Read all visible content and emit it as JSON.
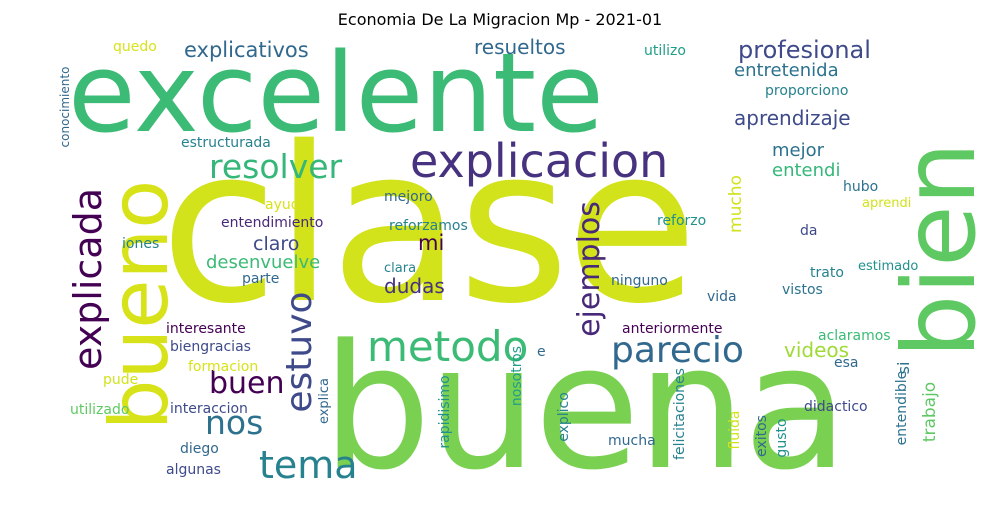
{
  "title": "Economia De La Migracion Mp - 2021-01",
  "words": {
    "clase": "clase",
    "buena": "buena",
    "excelente": "excelente",
    "bien": "bien",
    "bueno": "bueno",
    "explicacion": "explicacion",
    "explicada": "explicada",
    "estuvo": "estuvo",
    "ejemplos": "ejemplos",
    "metodo": "metodo",
    "parecio": "parecio",
    "resolver": "resolver",
    "tema": "tema",
    "nos": "nos",
    "buen": "buen",
    "profesional": "profesional",
    "explicativos": "explicativos",
    "resueltos": "resueltos",
    "entretenida": "entretenida",
    "aprendizaje": "aprendizaje",
    "mejor": "mejor",
    "entendi": "entendi",
    "claro": "claro",
    "desenvuelve": "desenvuelve",
    "mi": "mi",
    "dudas": "dudas",
    "videos": "videos",
    "mucho": "mucho",
    "quedo": "quedo",
    "utilizo": "utilizo",
    "proporciono": "proporciono",
    "conocimiento": "conocimiento",
    "estructurada": "estructurada",
    "ayudo": "ayudo",
    "mejoro": "mejoro",
    "entendimiento": "entendimiento",
    "reforzamos": "reforzamos",
    "reforzo": "reforzo",
    "hubo": "hubo",
    "aprendi": "aprendi",
    "iones": "iones",
    "da": "da",
    "clara": "clara",
    "parte": "parte",
    "ninguno": "ninguno",
    "trato": "trato",
    "estimado": "estimado",
    "vistos": "vistos",
    "vida": "vida",
    "interesante": "interesante",
    "biengracias": "biengracias",
    "anteriormente": "anteriormente",
    "aclaramos": "aclaramos",
    "formacion": "formacion",
    "pude": "pude",
    "esa": "esa",
    "e": "e",
    "si": "si",
    "utilizado": "utilizado",
    "interaccion": "interaccion",
    "explica": "explica",
    "nosotros": "nosotros",
    "rapidisimo": "rapidisimo",
    "explico": "explico",
    "felicitaciones": "felicitaciones",
    "fluida": "fluida",
    "exitos": "exitos",
    "gusto": "gusto",
    "didactico": "didactico",
    "entendible": "entendible",
    "trabajo": "trabajo",
    "diego": "diego",
    "mucha": "mucha",
    "algunas": "algunas"
  }
}
